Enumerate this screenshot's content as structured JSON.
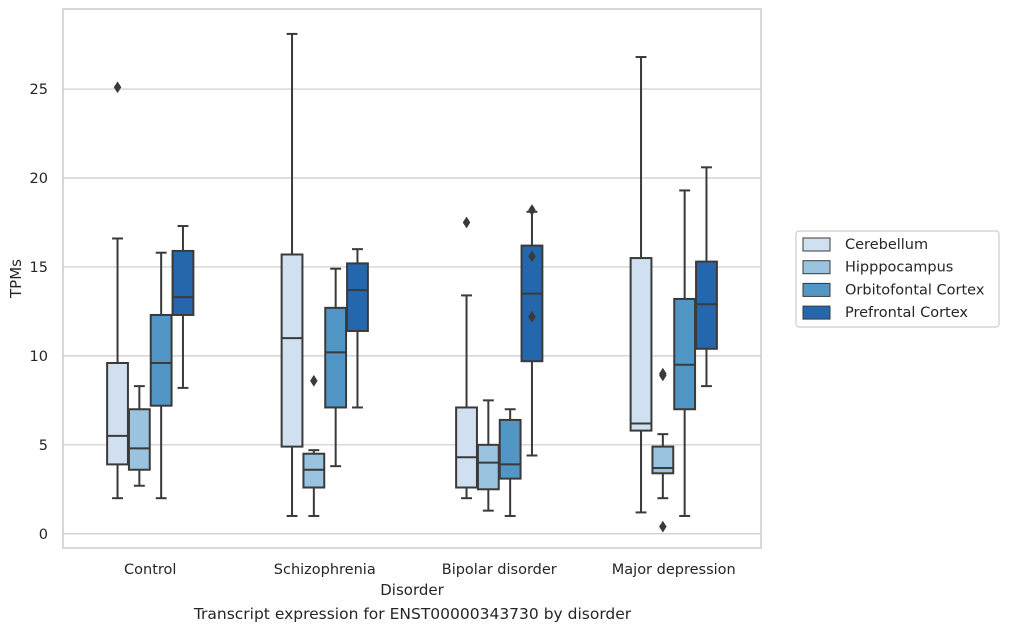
{
  "chart_data": {
    "type": "box",
    "xlabel": "Disorder",
    "ylabel": "TPMs",
    "categories": [
      "Control",
      "Schizophrenia",
      "Bipolar disorder",
      "Major depression"
    ],
    "ylim": [
      -0.8,
      29.5
    ],
    "yticks": [
      0,
      5,
      10,
      15,
      20,
      25
    ],
    "grid": "horizontal",
    "legend_position": "right",
    "series": [
      {
        "name": "Cerebellum",
        "color": "#d0e0f0",
        "boxes": [
          {
            "category": "Control",
            "whislo": 2.0,
            "q1": 3.9,
            "med": 5.5,
            "q3": 9.6,
            "whishi": 16.6,
            "fliers": [
              25.1
            ]
          },
          {
            "category": "Schizophrenia",
            "whislo": 1.0,
            "q1": 4.9,
            "med": 11.0,
            "q3": 15.7,
            "whishi": 28.1,
            "fliers": []
          },
          {
            "category": "Bipolar disorder",
            "whislo": 2.0,
            "q1": 2.6,
            "med": 4.3,
            "q3": 7.1,
            "whishi": 13.4,
            "fliers": [
              17.5
            ]
          },
          {
            "category": "Major depression",
            "whislo": 1.2,
            "q1": 5.8,
            "med": 6.2,
            "q3": 15.5,
            "whishi": 26.8,
            "fliers": []
          }
        ]
      },
      {
        "name": "Hipppocampus",
        "color": "#99c3de",
        "boxes": [
          {
            "category": "Control",
            "whislo": 2.7,
            "q1": 3.6,
            "med": 4.8,
            "q3": 7.0,
            "whishi": 8.3,
            "fliers": []
          },
          {
            "category": "Schizophrenia",
            "whislo": 1.0,
            "q1": 2.6,
            "med": 3.6,
            "q3": 4.5,
            "whishi": 4.7,
            "fliers": [
              8.6
            ]
          },
          {
            "category": "Bipolar disorder",
            "whislo": 1.3,
            "q1": 2.5,
            "med": 4.0,
            "q3": 5.0,
            "whishi": 7.5,
            "fliers": []
          },
          {
            "category": "Major depression",
            "whislo": 2.0,
            "q1": 3.4,
            "med": 3.7,
            "q3": 4.9,
            "whishi": 5.6,
            "fliers": [
              9.0,
              8.9,
              0.4
            ]
          }
        ]
      },
      {
        "name": "Orbitofontal Cortex",
        "color": "#5296c6",
        "boxes": [
          {
            "category": "Control",
            "whislo": 2.0,
            "q1": 7.2,
            "med": 9.6,
            "q3": 12.3,
            "whishi": 15.8,
            "fliers": []
          },
          {
            "category": "Schizophrenia",
            "whislo": 3.8,
            "q1": 7.1,
            "med": 10.2,
            "q3": 12.7,
            "whishi": 14.9,
            "fliers": []
          },
          {
            "category": "Bipolar disorder",
            "whislo": 1.0,
            "q1": 3.1,
            "med": 3.9,
            "q3": 6.4,
            "whishi": 7.0,
            "fliers": []
          },
          {
            "category": "Major depression",
            "whislo": 1.0,
            "q1": 7.0,
            "med": 9.5,
            "q3": 13.2,
            "whishi": 19.3,
            "fliers": []
          }
        ]
      },
      {
        "name": "Prefrontal Cortex",
        "color": "#2567ad",
        "boxes": [
          {
            "category": "Control",
            "whislo": 8.2,
            "q1": 12.3,
            "med": 13.3,
            "q3": 15.9,
            "whishi": 17.3,
            "fliers": []
          },
          {
            "category": "Schizophrenia",
            "whislo": 7.1,
            "q1": 11.4,
            "med": 13.7,
            "q3": 15.2,
            "whishi": 16.0,
            "fliers": []
          },
          {
            "category": "Bipolar disorder",
            "whislo": 4.4,
            "q1": 9.7,
            "med": 13.5,
            "q3": 16.2,
            "whishi": 18.1,
            "fliers": [
              18.2,
              15.6,
              12.2
            ]
          },
          {
            "category": "Major depression",
            "whislo": 8.3,
            "q1": 10.4,
            "med": 12.9,
            "q3": 15.3,
            "whishi": 20.6,
            "fliers": []
          }
        ]
      }
    ],
    "caption": "Transcript expression for ENST00000343730 by disorder"
  }
}
